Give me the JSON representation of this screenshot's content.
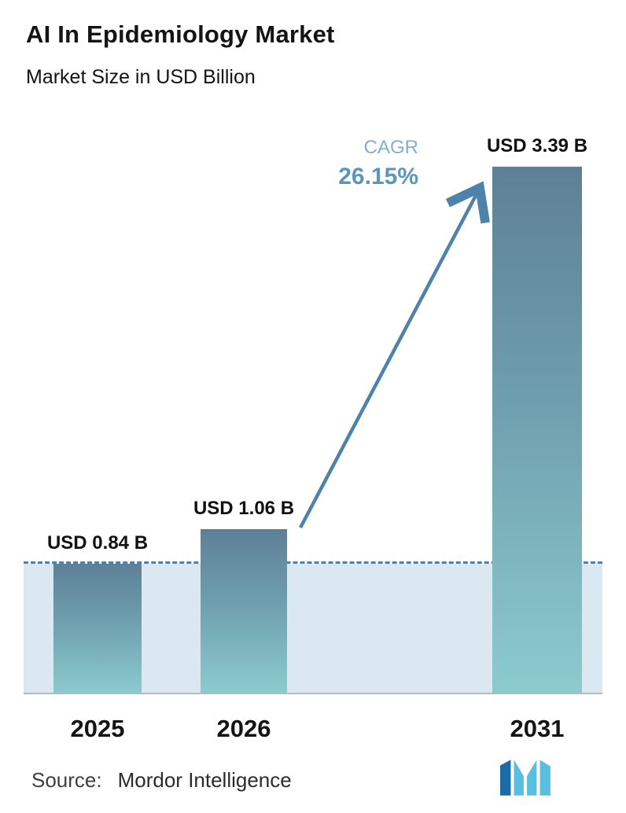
{
  "header": {
    "title": "AI In Epidemiology Market",
    "subtitle": "Market Size in USD Billion"
  },
  "chart_data": {
    "type": "bar",
    "categories": [
      "2025",
      "2026",
      "2031"
    ],
    "values": [
      0.84,
      1.06,
      3.39
    ],
    "bar_labels": [
      "USD 0.84 B",
      "USD 1.06 B",
      "USD 3.39 B"
    ],
    "title": "AI In Epidemiology Market",
    "subtitle": "Market Size in USD Billion",
    "xlabel": "",
    "ylabel": "",
    "ylim": [
      0,
      3.5
    ],
    "grid": false,
    "legend": "none",
    "annotations": {
      "cagr_label": "CAGR",
      "cagr_value": "26.15%",
      "reference_line_value": 0.84,
      "arrow": "from 2026 bar top to 2031 bar top"
    },
    "colors": {
      "bar_gradient_top": "#5e8096",
      "bar_gradient_mid": "#6f9fae",
      "bar_gradient_bottom": "#8ccbce",
      "dashed_line": "#4e82aa",
      "band": "#dce8f1",
      "arrow": "#4e82aa",
      "cagr_label_text": "#85aec9",
      "cagr_value_text": "#5c95ba",
      "axis_line": "#b6babf"
    }
  },
  "footer": {
    "source_label": "Source:",
    "source_name": "Mordor Intelligence"
  },
  "logo": {
    "name": "mordor-intelligence-logo",
    "color_dark": "#1c6aa6",
    "color_light": "#58c0de"
  }
}
